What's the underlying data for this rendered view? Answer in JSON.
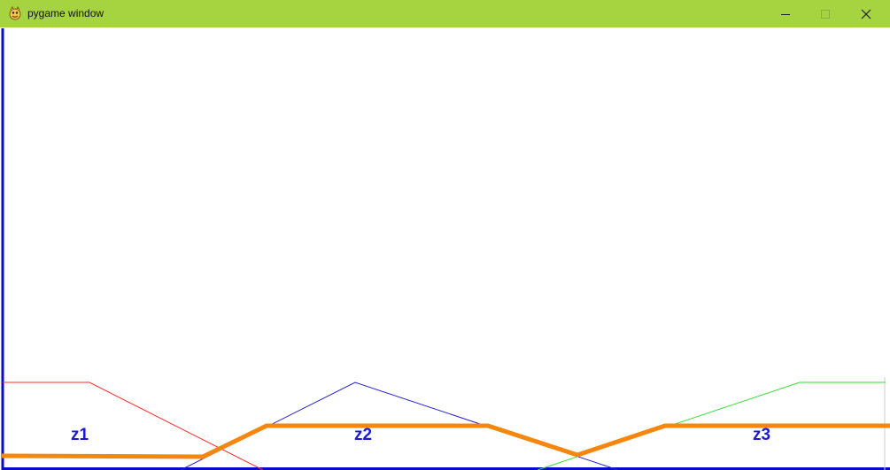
{
  "window": {
    "title": "pygame window",
    "controls": [
      "minimize-icon",
      "maximize-icon",
      "close-icon"
    ]
  },
  "canvas": {
    "background": "#ffffff",
    "axis_color": "#0a0acd",
    "zones": [
      {
        "label": "z1",
        "color": "#ff2a2a"
      },
      {
        "label": "z2",
        "color": "#2222cc"
      },
      {
        "label": "z3",
        "color": "#33dd33"
      }
    ],
    "output_line_color": "#f5870f"
  }
}
